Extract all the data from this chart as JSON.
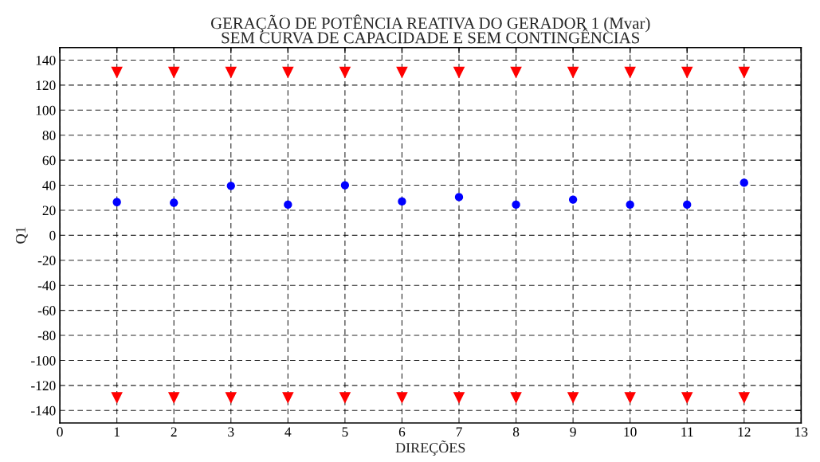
{
  "chart_data": {
    "type": "scatter",
    "title": "GERAÇÃO DE POTÊNCIA REATIVA DO GERADOR 1 (Mvar)\nSEM CURVA DE CAPACIDADE E SEM CONTINGÊNCIAS",
    "xlabel": "DIREÇÕES",
    "ylabel": "Q1",
    "x": [
      1,
      2,
      3,
      4,
      5,
      6,
      7,
      8,
      9,
      10,
      11,
      12
    ],
    "series": [
      {
        "color": "#0000ff",
        "marker": "circle",
        "values": [
          26.5,
          26,
          39.5,
          24.5,
          40,
          27,
          30.5,
          24.5,
          28.5,
          24.5,
          24.5,
          42
        ]
      },
      {
        "color": "#ff0000",
        "marker": "triangle",
        "values": [
          130,
          130,
          130,
          130,
          130,
          130,
          130,
          130,
          130,
          130,
          130,
          130
        ]
      },
      {
        "color": "#ff0000",
        "marker": "triangle",
        "values": [
          -130,
          -130,
          -130,
          -130,
          -130,
          -130,
          -130,
          -130,
          -130,
          -130,
          -130,
          -130
        ]
      }
    ],
    "xlim": [
      0,
      13
    ],
    "xticks": [
      0,
      1,
      2,
      3,
      4,
      5,
      6,
      7,
      8,
      9,
      10,
      11,
      12,
      13
    ],
    "ylim": [
      -150,
      150
    ],
    "yticks": [
      -140,
      -120,
      -100,
      -80,
      -60,
      -40,
      -20,
      0,
      20,
      40,
      60,
      80,
      100,
      120,
      140
    ],
    "grid": true,
    "legend": false
  }
}
